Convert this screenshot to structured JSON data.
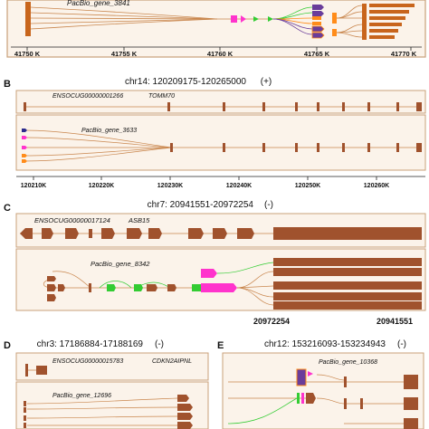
{
  "panels": {
    "a": {
      "gene_label": "PacBio_gene_3841",
      "ticks": [
        "41750 K",
        "41755 K",
        "41760 K",
        "41765 K",
        "41770 K"
      ]
    },
    "b": {
      "letter": "B",
      "title": "chr14: 120209175-120265000",
      "strand": "(+)",
      "ens_label": "ENSOCUG00000001266",
      "gene_name": "TOMM70",
      "pacbio_label": "PacBio_gene_3633",
      "ticks": [
        "120210K",
        "120220K",
        "120230K",
        "120240K",
        "120250K",
        "120260K"
      ]
    },
    "c": {
      "letter": "C",
      "title": "chr7: 20941551-20972254",
      "strand": "(-)",
      "ens_label": "ENSOCUG00000017124",
      "gene_name": "ASB15",
      "pacbio_label": "PacBio_gene_8342",
      "coord_left": "20972254",
      "coord_right": "20941551"
    },
    "d": {
      "letter": "D",
      "title": "chr3: 17186884-17188169",
      "strand": "(-)",
      "ens_label": "ENSOCUG00000015783",
      "gene_name": "CDKN2AIPNL",
      "pacbio_label": "PacBio_gene_12696"
    },
    "e": {
      "letter": "E",
      "title": "chr12: 153216093-153234943",
      "strand": "(-)",
      "pacbio_label": "PacBio_gene_10368"
    }
  },
  "colors": {
    "exon": "#a0522d",
    "intron": "#c9864d",
    "frame": "#d8b48c",
    "alt_magenta": "#ff33cc",
    "alt_green": "#33cc33",
    "alt_purple": "#6a3d9a",
    "alt_orange": "#ff8c1a",
    "alt_navy": "#2b2b8c"
  }
}
